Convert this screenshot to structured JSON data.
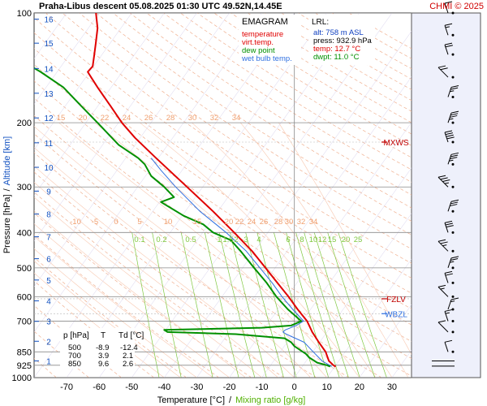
{
  "header": {
    "title": "Praha-Libus   descent   05.08.2025 01:30 UTC  49.52N,14.45E",
    "copyright": "CHMI © 2025"
  },
  "chart_data": {
    "type": "line",
    "title": "EMAGRAM",
    "xlabel": "Temperature [°C]",
    "xlabel_sep": "/",
    "xlabel_secondary": "Mixing ratio [g/kg]",
    "ylabel": "Pressure [hPa]",
    "ylabel_sep": "/",
    "ylabel_secondary": "Altitude [km]",
    "xlim": [
      -80,
      36
    ],
    "ylim": [
      1000,
      100
    ],
    "y_scale": "log",
    "x_ticks": [
      -70,
      -60,
      -50,
      -40,
      -30,
      -20,
      -10,
      0,
      10,
      20,
      30
    ],
    "pressure_ticks": [
      100,
      200,
      300,
      400,
      500,
      600,
      700,
      850,
      925,
      1000
    ],
    "altitude_ticks": [
      {
        "km": "1",
        "p": 900
      },
      {
        "km": "2",
        "p": 795
      },
      {
        "km": "3",
        "p": 701
      },
      {
        "km": "4",
        "p": 616
      },
      {
        "km": "5",
        "p": 540
      },
      {
        "km": "6",
        "p": 472
      },
      {
        "km": "7",
        "p": 411
      },
      {
        "km": "8",
        "p": 356
      },
      {
        "km": "9",
        "p": 308
      },
      {
        "km": "10",
        "p": 265
      },
      {
        "km": "11",
        "p": 227
      },
      {
        "km": "12",
        "p": 194
      },
      {
        "km": "13",
        "p": 166
      },
      {
        "km": "14",
        "p": 142
      },
      {
        "km": "15",
        "p": 121
      },
      {
        "km": "16",
        "p": 104
      }
    ],
    "legend": [
      {
        "label": "temperature",
        "color": "#e00000"
      },
      {
        "label": "virt.temp.",
        "color": "#e00000"
      },
      {
        "label": "dew point",
        "color": "#009000"
      },
      {
        "label": "wet bulb temp.",
        "color": "#3070e0"
      }
    ],
    "lrl": {
      "label": "LRL:",
      "alt": "alt: 758 m ASL",
      "press": "press: 932.9 hPa",
      "temp": "temp: 12.7 °C",
      "dwpt": "dwpt: 11.0 °C"
    },
    "levels": [
      {
        "label": "MXWS",
        "p": 226
      },
      {
        "label": "FZLV",
        "p": 608
      },
      {
        "label": "WBZL",
        "p": 668
      }
    ],
    "table": {
      "header": [
        "p [hPa]",
        "T",
        "Td [°C]"
      ],
      "rows": [
        [
          "500",
          "-8.9",
          "-12.4"
        ],
        [
          "700",
          "3.9",
          "2.1"
        ],
        [
          "850",
          "9.6",
          "2.6"
        ]
      ]
    },
    "dry_adiabat_labels": {
      "p": 200,
      "values": [
        "15",
        "20",
        "22",
        "24",
        "26",
        "28",
        "30",
        "32",
        "34"
      ]
    },
    "moist_adiabat_labels": {
      "p": 385,
      "values": [
        "-10",
        "-5",
        "0",
        "5",
        "10",
        "15",
        "20",
        "22",
        "24",
        "26",
        "28",
        "30",
        "32",
        "34"
      ]
    },
    "mixing_ratio_labels": [
      "0.1",
      "0.2",
      "0.5",
      "1",
      "1.5",
      "2",
      "3",
      "4",
      "6",
      "8",
      "10",
      "12",
      "15",
      "20",
      "25"
    ],
    "series": [
      {
        "name": "temperature",
        "color": "#e00000",
        "points": [
          [
            932.9,
            12.7
          ],
          [
            925,
            12.0
          ],
          [
            900,
            10.6
          ],
          [
            850,
            9.6
          ],
          [
            800,
            7.5
          ],
          [
            750,
            5.5
          ],
          [
            700,
            3.9
          ],
          [
            650,
            1.0
          ],
          [
            600,
            -1.8
          ],
          [
            550,
            -5.2
          ],
          [
            500,
            -8.9
          ],
          [
            450,
            -13.0
          ],
          [
            400,
            -18.5
          ],
          [
            350,
            -25.0
          ],
          [
            300,
            -33.0
          ],
          [
            270,
            -38.5
          ],
          [
            250,
            -42.5
          ],
          [
            220,
            -49.0
          ],
          [
            200,
            -53.0
          ],
          [
            180,
            -56.5
          ],
          [
            160,
            -60.5
          ],
          [
            150,
            -62.5
          ],
          [
            145,
            -63.5
          ],
          [
            140,
            -62.0
          ],
          [
            130,
            -61.5
          ],
          [
            120,
            -61.0
          ],
          [
            110,
            -60.5
          ],
          [
            100,
            -61.0
          ]
        ]
      },
      {
        "name": "dew point",
        "color": "#009000",
        "points": [
          [
            932.9,
            11.0
          ],
          [
            925,
            10.0
          ],
          [
            910,
            7.0
          ],
          [
            880,
            4.5
          ],
          [
            860,
            3.5
          ],
          [
            850,
            2.6
          ],
          [
            820,
            0.0
          ],
          [
            800,
            -1.0
          ],
          [
            780,
            -3.0
          ],
          [
            760,
            -18.0
          ],
          [
            750,
            -39.0
          ],
          [
            740,
            -40.0
          ],
          [
            730,
            -10.0
          ],
          [
            720,
            -1.0
          ],
          [
            700,
            2.1
          ],
          [
            680,
            0.5
          ],
          [
            650,
            -2.0
          ],
          [
            600,
            -5.5
          ],
          [
            550,
            -8.5
          ],
          [
            500,
            -12.4
          ],
          [
            450,
            -16.5
          ],
          [
            420,
            -19.5
          ],
          [
            400,
            -25.0
          ],
          [
            380,
            -28.0
          ],
          [
            360,
            -34.0
          ],
          [
            330,
            -41.0
          ],
          [
            320,
            -37.0
          ],
          [
            300,
            -40.0
          ],
          [
            280,
            -44.0
          ],
          [
            260,
            -46.0
          ],
          [
            250,
            -48.0
          ],
          [
            230,
            -54.0
          ],
          [
            200,
            -60.5
          ],
          [
            180,
            -65.5
          ],
          [
            160,
            -71.0
          ],
          [
            145,
            -78.0
          ],
          [
            140,
            -81.0
          ]
        ]
      },
      {
        "name": "wet bulb temp.",
        "color": "#3070e0",
        "points": [
          [
            932.9,
            11.5
          ],
          [
            925,
            10.8
          ],
          [
            900,
            8.5
          ],
          [
            850,
            5.8
          ],
          [
            800,
            3.0
          ],
          [
            760,
            -2.5
          ],
          [
            750,
            -3.5
          ],
          [
            740,
            -2.8
          ],
          [
            720,
            0.5
          ],
          [
            700,
            2.8
          ],
          [
            650,
            -0.5
          ],
          [
            600,
            -3.8
          ],
          [
            550,
            -6.8
          ],
          [
            500,
            -10.6
          ],
          [
            450,
            -14.8
          ],
          [
            400,
            -21.0
          ],
          [
            350,
            -29.0
          ],
          [
            300,
            -36.5
          ],
          [
            270,
            -41.0
          ],
          [
            250,
            -44.0
          ]
        ]
      }
    ],
    "wind_barbs": [
      {
        "p": 930,
        "speed": "calm"
      },
      {
        "p": 900,
        "speed": "calm"
      },
      {
        "p": 850,
        "speed": 10
      },
      {
        "p": 750,
        "speed": 10
      },
      {
        "p": 700,
        "speed": 15
      },
      {
        "p": 650,
        "speed": 15
      },
      {
        "p": 600,
        "speed": 15
      },
      {
        "p": 550,
        "speed": 20
      },
      {
        "p": 500,
        "speed": 25
      },
      {
        "p": 450,
        "speed": 25
      },
      {
        "p": 400,
        "speed": 30
      },
      {
        "p": 350,
        "speed": 30
      },
      {
        "p": 300,
        "speed": 35
      },
      {
        "p": 260,
        "speed": 35
      },
      {
        "p": 226,
        "speed": 40
      },
      {
        "p": 200,
        "speed": 35
      },
      {
        "p": 170,
        "speed": 25
      },
      {
        "p": 150,
        "speed": 20
      },
      {
        "p": 130,
        "speed": 20
      },
      {
        "p": 115,
        "speed": 15
      },
      {
        "p": 100,
        "speed": 10
      }
    ]
  }
}
